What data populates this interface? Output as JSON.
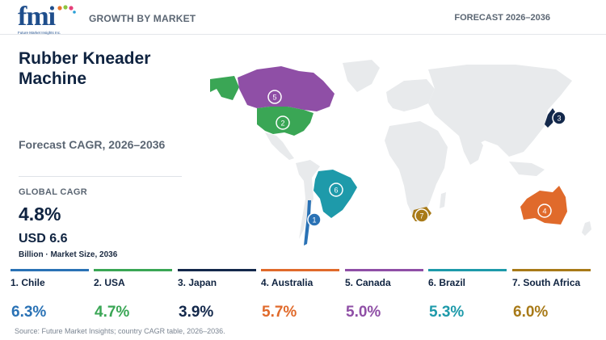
{
  "header": {
    "logo_text": "fmi",
    "logo_subtitle": "Future Market Insights Inc.",
    "left_label": "GROWTH BY MARKET",
    "right_label": "FORECAST 2026–2036"
  },
  "summary": {
    "title": "Rubber Kneader Machine",
    "cagr_label": "Forecast CAGR, 2026–2036",
    "global_cagr_label": "GLOBAL CAGR",
    "global_cagr_value": "4.8%",
    "market_size_value": "USD 6.6",
    "market_size_note": "Billion · Market Size, 2036"
  },
  "colors": {
    "chile": "#2a72b5",
    "usa": "#3aa655",
    "japan": "#13284b",
    "australia": "#e06a2b",
    "canada": "#8f4fa6",
    "brazil": "#1e9aaa",
    "south_africa": "#a87a18",
    "land": "#e8eaec"
  },
  "countries": [
    {
      "rank": "1",
      "name": "1. Chile",
      "cagr": "6.3%",
      "color": "#2a72b5"
    },
    {
      "rank": "2",
      "name": "2. USA",
      "cagr": "4.7%",
      "color": "#3aa655"
    },
    {
      "rank": "3",
      "name": "3. Japan",
      "cagr": "3.9%",
      "color": "#13284b"
    },
    {
      "rank": "4",
      "name": "4. Australia",
      "cagr": "5.7%",
      "color": "#e06a2b"
    },
    {
      "rank": "5",
      "name": "5. Canada",
      "cagr": "5.0%",
      "color": "#8f4fa6"
    },
    {
      "rank": "6",
      "name": "6. Brazil",
      "cagr": "5.3%",
      "color": "#1e9aaa"
    },
    {
      "rank": "7",
      "name": "7. South Africa",
      "cagr": "6.0%",
      "color": "#a87a18"
    }
  ],
  "source": "Source: Future Market Insights; country CAGR table, 2026–2036."
}
